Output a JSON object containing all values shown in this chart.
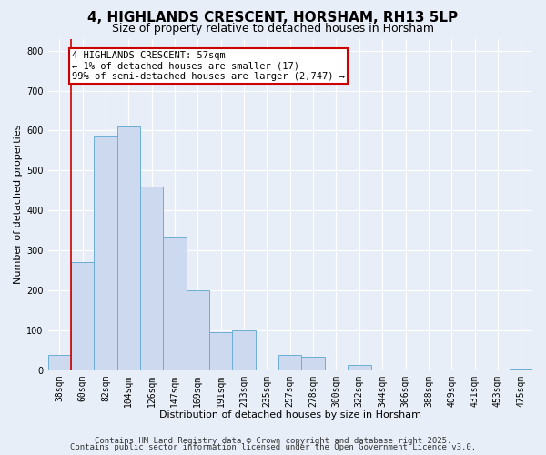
{
  "title": "4, HIGHLANDS CRESCENT, HORSHAM, RH13 5LP",
  "subtitle": "Size of property relative to detached houses in Horsham",
  "xlabel": "Distribution of detached houses by size in Horsham",
  "ylabel": "Number of detached properties",
  "bar_labels": [
    "38sqm",
    "60sqm",
    "82sqm",
    "104sqm",
    "126sqm",
    "147sqm",
    "169sqm",
    "191sqm",
    "213sqm",
    "235sqm",
    "257sqm",
    "278sqm",
    "300sqm",
    "322sqm",
    "344sqm",
    "366sqm",
    "388sqm",
    "409sqm",
    "431sqm",
    "453sqm",
    "475sqm"
  ],
  "bar_values": [
    38,
    270,
    585,
    610,
    460,
    335,
    200,
    95,
    100,
    0,
    38,
    33,
    0,
    12,
    0,
    0,
    0,
    0,
    0,
    0,
    2
  ],
  "bar_color": "#ccd9ee",
  "bar_edge_color": "#6baed6",
  "vline_color": "#cc0000",
  "annotation_text": "4 HIGHLANDS CRESCENT: 57sqm\n← 1% of detached houses are smaller (17)\n99% of semi-detached houses are larger (2,747) →",
  "annotation_box_color": "#ffffff",
  "annotation_box_edge": "#cc0000",
  "ylim": [
    0,
    830
  ],
  "yticks": [
    0,
    100,
    200,
    300,
    400,
    500,
    600,
    700,
    800
  ],
  "footnote1": "Contains HM Land Registry data © Crown copyright and database right 2025.",
  "footnote2": "Contains public sector information licensed under the Open Government Licence v3.0.",
  "background_color": "#e8eef8",
  "grid_color": "#ffffff",
  "title_fontsize": 11,
  "subtitle_fontsize": 9,
  "axis_label_fontsize": 8,
  "tick_fontsize": 7,
  "annotation_fontsize": 7.5,
  "footnote_fontsize": 6.5
}
